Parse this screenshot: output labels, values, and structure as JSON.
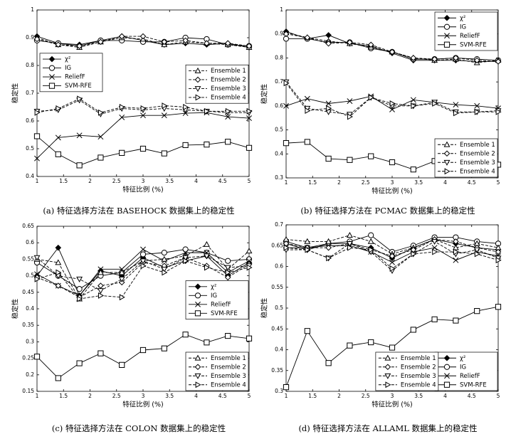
{
  "chart_data": [
    {
      "type": "line",
      "title": "(a) 特征选择方法在 BASEHOCK 数据集上的稳定性",
      "xlabel": "特征比例 (%)",
      "ylabel": "稳定性",
      "x": [
        1,
        1.4,
        1.8,
        2.2,
        2.6,
        3,
        3.4,
        3.8,
        4.2,
        4.6,
        5
      ],
      "xlim": [
        1,
        5
      ],
      "xticks": [
        1,
        1.5,
        2,
        2.5,
        3,
        3.5,
        4,
        4.5,
        5
      ],
      "ylim": [
        0.4,
        1
      ],
      "yticks": [
        0.4,
        0.5,
        0.6,
        0.7,
        0.8,
        0.9,
        1
      ],
      "legend_loc": [
        "upper left",
        "center right"
      ],
      "series": [
        {
          "name": "χ²",
          "color": "#000000",
          "marker": "filled-diamond",
          "dashed": false,
          "values": [
            0.905,
            0.88,
            0.875,
            0.89,
            0.905,
            0.89,
            0.875,
            0.88,
            0.875,
            0.88,
            0.865
          ]
        },
        {
          "name": "IG",
          "color": "#000000",
          "marker": "circle",
          "dashed": false,
          "values": [
            0.89,
            0.88,
            0.87,
            0.89,
            0.89,
            0.885,
            0.885,
            0.9,
            0.895,
            0.875,
            0.87
          ]
        },
        {
          "name": "ReliefF",
          "color": "#000000",
          "marker": "cross",
          "dashed": false,
          "values": [
            0.465,
            0.54,
            0.548,
            0.543,
            0.613,
            0.62,
            0.62,
            0.628,
            0.63,
            0.615,
            0.61
          ]
        },
        {
          "name": "SVM-RFE",
          "color": "#000000",
          "marker": "square",
          "dashed": false,
          "values": [
            0.545,
            0.48,
            0.44,
            0.468,
            0.485,
            0.5,
            0.483,
            0.513,
            0.515,
            0.525,
            0.503
          ]
        },
        {
          "name": "Ensemble 1",
          "color": "#000000",
          "marker": "triangle-up",
          "dashed": true,
          "values": [
            0.9,
            0.875,
            0.865,
            0.885,
            0.9,
            0.895,
            0.875,
            0.885,
            0.88,
            0.875,
            0.865
          ]
        },
        {
          "name": "Ensemble 2",
          "color": "#000000",
          "marker": "diamond",
          "dashed": true,
          "values": [
            0.895,
            0.875,
            0.87,
            0.885,
            0.905,
            0.905,
            0.885,
            0.89,
            0.88,
            0.88,
            0.87
          ]
        },
        {
          "name": "Ensemble 3",
          "color": "#000000",
          "marker": "triangle-down",
          "dashed": true,
          "values": [
            0.635,
            0.64,
            0.675,
            0.625,
            0.645,
            0.64,
            0.645,
            0.64,
            0.635,
            0.63,
            0.63
          ]
        },
        {
          "name": "Ensemble 4",
          "color": "#000000",
          "marker": "triangle-right",
          "dashed": true,
          "values": [
            0.63,
            0.645,
            0.68,
            0.63,
            0.65,
            0.645,
            0.655,
            0.65,
            0.635,
            0.635,
            0.635
          ]
        }
      ]
    },
    {
      "type": "line",
      "title": "(b) 特征选择方法在 PCMAC 数据集上的稳定性",
      "xlabel": "特征比例 (%)",
      "ylabel": "稳定性",
      "x": [
        1,
        1.4,
        1.8,
        2.2,
        2.6,
        3,
        3.4,
        3.8,
        4.2,
        4.6,
        5
      ],
      "xlim": [
        1,
        5
      ],
      "xticks": [
        1,
        1.5,
        2,
        2.5,
        3,
        3.5,
        4,
        4.5,
        5
      ],
      "ylim": [
        0.3,
        1
      ],
      "yticks": [
        0.3,
        0.4,
        0.5,
        0.6,
        0.7,
        0.8,
        0.9,
        1
      ],
      "legend_loc": [
        "upper right",
        "lower right"
      ],
      "series": [
        {
          "name": "χ²",
          "color": "#000000",
          "marker": "filled-diamond",
          "dashed": false,
          "values": [
            0.91,
            0.88,
            0.895,
            0.86,
            0.85,
            0.82,
            0.79,
            0.79,
            0.79,
            0.785,
            0.785
          ]
        },
        {
          "name": "IG",
          "color": "#000000",
          "marker": "circle",
          "dashed": false,
          "values": [
            0.88,
            0.88,
            0.865,
            0.865,
            0.84,
            0.825,
            0.795,
            0.795,
            0.8,
            0.795,
            0.79
          ]
        },
        {
          "name": "ReliefF",
          "color": "#000000",
          "marker": "cross",
          "dashed": false,
          "values": [
            0.6,
            0.63,
            0.61,
            0.62,
            0.64,
            0.585,
            0.625,
            0.615,
            0.605,
            0.6,
            0.59
          ]
        },
        {
          "name": "SVM-RFE",
          "color": "#000000",
          "marker": "square",
          "dashed": false,
          "values": [
            0.445,
            0.45,
            0.38,
            0.375,
            0.39,
            0.365,
            0.335,
            0.37,
            0.365,
            0.345,
            0.355
          ]
        },
        {
          "name": "Ensemble 1",
          "color": "#000000",
          "marker": "triangle-up",
          "dashed": true,
          "values": [
            0.905,
            0.885,
            0.87,
            0.86,
            0.845,
            0.825,
            0.8,
            0.79,
            0.795,
            0.78,
            0.79
          ]
        },
        {
          "name": "Ensemble 2",
          "color": "#000000",
          "marker": "diamond",
          "dashed": true,
          "values": [
            0.9,
            0.885,
            0.86,
            0.865,
            0.855,
            0.825,
            0.8,
            0.795,
            0.8,
            0.79,
            0.785
          ]
        },
        {
          "name": "Ensemble 3",
          "color": "#000000",
          "marker": "triangle-down",
          "dashed": true,
          "values": [
            0.7,
            0.59,
            0.575,
            0.565,
            0.635,
            0.6,
            0.6,
            0.615,
            0.575,
            0.575,
            0.58
          ]
        },
        {
          "name": "Ensemble 4",
          "color": "#000000",
          "marker": "triangle-right",
          "dashed": true,
          "values": [
            0.695,
            0.58,
            0.59,
            0.555,
            0.635,
            0.61,
            0.6,
            0.61,
            0.57,
            0.575,
            0.575
          ]
        }
      ]
    },
    {
      "type": "line",
      "title": "(c) 特征选择方法在 COLON 数据集上的稳定性",
      "xlabel": "特征比例 (%)",
      "ylabel": "稳定性",
      "x": [
        1,
        1.4,
        1.8,
        2.2,
        2.6,
        3,
        3.4,
        3.8,
        4.2,
        4.6,
        5
      ],
      "xlim": [
        1,
        5
      ],
      "xticks": [
        1,
        1.5,
        2,
        2.5,
        3,
        3.5,
        4,
        4.5,
        5
      ],
      "ylim": [
        0.15,
        0.65
      ],
      "yticks": [
        0.15,
        0.2,
        0.25,
        0.3,
        0.35,
        0.4,
        0.45,
        0.5,
        0.55,
        0.6,
        0.65
      ],
      "legend_loc": [
        "center right",
        "lower right"
      ],
      "series": [
        {
          "name": "χ²",
          "color": "#000000",
          "marker": "filled-diamond",
          "dashed": false,
          "values": [
            0.5,
            0.585,
            0.44,
            0.515,
            0.5,
            0.555,
            0.525,
            0.545,
            0.56,
            0.5,
            0.54
          ]
        },
        {
          "name": "IG",
          "color": "#000000",
          "marker": "circle",
          "dashed": false,
          "values": [
            0.54,
            0.5,
            0.46,
            0.5,
            0.51,
            0.565,
            0.57,
            0.58,
            0.57,
            0.545,
            0.55
          ]
        },
        {
          "name": "ReliefF",
          "color": "#000000",
          "marker": "cross",
          "dashed": false,
          "values": [
            0.505,
            0.47,
            0.44,
            0.52,
            0.52,
            0.58,
            0.545,
            0.57,
            0.57,
            0.51,
            0.545
          ]
        },
        {
          "name": "SVM-RFE",
          "color": "#000000",
          "marker": "square",
          "dashed": false,
          "values": [
            0.255,
            0.19,
            0.235,
            0.265,
            0.23,
            0.275,
            0.28,
            0.322,
            0.298,
            0.318,
            0.31
          ]
        },
        {
          "name": "Ensemble 1",
          "color": "#000000",
          "marker": "triangle-up",
          "dashed": true,
          "values": [
            0.55,
            0.54,
            0.43,
            0.51,
            0.51,
            0.545,
            0.55,
            0.56,
            0.595,
            0.52,
            0.575
          ]
        },
        {
          "name": "Ensemble 2",
          "color": "#000000",
          "marker": "diamond",
          "dashed": true,
          "values": [
            0.495,
            0.47,
            0.435,
            0.47,
            0.48,
            0.54,
            0.53,
            0.555,
            0.53,
            0.495,
            0.535
          ]
        },
        {
          "name": "Ensemble 3",
          "color": "#000000",
          "marker": "triangle-down",
          "dashed": true,
          "values": [
            0.555,
            0.5,
            0.49,
            0.455,
            0.49,
            0.545,
            0.52,
            0.555,
            0.56,
            0.525,
            0.53
          ]
        },
        {
          "name": "Ensemble 4",
          "color": "#000000",
          "marker": "triangle-right",
          "dashed": true,
          "values": [
            0.49,
            0.51,
            0.43,
            0.44,
            0.435,
            0.53,
            0.51,
            0.545,
            0.525,
            0.51,
            0.525
          ]
        }
      ]
    },
    {
      "type": "line",
      "title": "(d) 特征选择方法在 ALLAML 数据集上的稳定性",
      "xlabel": "特征比例 (%)",
      "ylabel": "稳定性",
      "x": [
        1,
        1.4,
        1.8,
        2.2,
        2.6,
        3,
        3.4,
        3.8,
        4.2,
        4.6,
        5
      ],
      "xlim": [
        1,
        5
      ],
      "xticks": [
        1,
        1.5,
        2,
        2.5,
        3,
        3.5,
        4,
        4.5,
        5
      ],
      "ylim": [
        0.3,
        0.7
      ],
      "yticks": [
        0.3,
        0.35,
        0.4,
        0.45,
        0.5,
        0.55,
        0.6,
        0.65,
        0.7
      ],
      "legend_loc": [
        "lower right",
        "lower center"
      ],
      "series": [
        {
          "name": "χ²",
          "color": "#000000",
          "marker": "filled-diamond",
          "dashed": false,
          "values": [
            0.655,
            0.64,
            0.655,
            0.655,
            0.645,
            0.62,
            0.645,
            0.665,
            0.655,
            0.645,
            0.64
          ]
        },
        {
          "name": "IG",
          "color": "#000000",
          "marker": "circle",
          "dashed": false,
          "values": [
            0.66,
            0.645,
            0.655,
            0.66,
            0.675,
            0.635,
            0.65,
            0.67,
            0.67,
            0.66,
            0.655
          ]
        },
        {
          "name": "ReliefF",
          "color": "#000000",
          "marker": "cross",
          "dashed": false,
          "values": [
            0.645,
            0.645,
            0.65,
            0.65,
            0.635,
            0.61,
            0.635,
            0.645,
            0.615,
            0.635,
            0.625
          ]
        },
        {
          "name": "SVM-RFE",
          "color": "#000000",
          "marker": "square",
          "dashed": false,
          "values": [
            0.31,
            0.445,
            0.368,
            0.41,
            0.418,
            0.405,
            0.448,
            0.473,
            0.47,
            0.493,
            0.503
          ]
        },
        {
          "name": "Ensemble 1",
          "color": "#000000",
          "marker": "triangle-up",
          "dashed": true,
          "values": [
            0.665,
            0.66,
            0.66,
            0.675,
            0.66,
            0.63,
            0.645,
            0.665,
            0.645,
            0.655,
            0.645
          ]
        },
        {
          "name": "Ensemble 2",
          "color": "#000000",
          "marker": "diamond",
          "dashed": true,
          "values": [
            0.655,
            0.645,
            0.645,
            0.655,
            0.64,
            0.625,
            0.64,
            0.665,
            0.66,
            0.645,
            0.635
          ]
        },
        {
          "name": "Ensemble 3",
          "color": "#000000",
          "marker": "triangle-down",
          "dashed": true,
          "values": [
            0.64,
            0.64,
            0.62,
            0.655,
            0.635,
            0.59,
            0.63,
            0.66,
            0.63,
            0.64,
            0.62
          ]
        },
        {
          "name": "Ensemble 4",
          "color": "#000000",
          "marker": "triangle-right",
          "dashed": true,
          "values": [
            0.645,
            0.64,
            0.62,
            0.645,
            0.64,
            0.595,
            0.63,
            0.635,
            0.635,
            0.63,
            0.615
          ]
        }
      ]
    }
  ]
}
